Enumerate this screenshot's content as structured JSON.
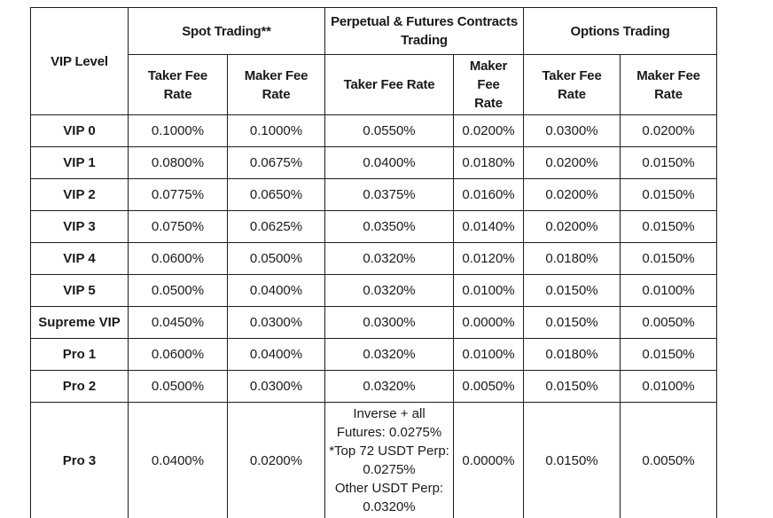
{
  "colors": {
    "background": "#ffffff",
    "border": "#1d1d1d",
    "text": "#1a1a1a"
  },
  "table": {
    "corner_header": "VIP Level",
    "groups": [
      {
        "label": "Spot Trading**",
        "columns": [
          "Taker Fee\nRate",
          "Maker Fee\nRate"
        ]
      },
      {
        "label": "Perpetual & Futures Contracts\nTrading",
        "columns": [
          "Taker Fee Rate",
          "Maker Fee\nRate"
        ]
      },
      {
        "label": "Options Trading",
        "columns": [
          "Taker Fee\nRate",
          "Maker Fee\nRate"
        ]
      }
    ],
    "rows": [
      {
        "level": "VIP 0",
        "values": [
          "0.1000%",
          "0.1000%",
          "0.0550%",
          "0.0200%",
          "0.0300%",
          "0.0200%"
        ]
      },
      {
        "level": "VIP 1",
        "values": [
          "0.0800%",
          "0.0675%",
          "0.0400%",
          "0.0180%",
          "0.0200%",
          "0.0150%"
        ]
      },
      {
        "level": "VIP 2",
        "values": [
          "0.0775%",
          "0.0650%",
          "0.0375%",
          "0.0160%",
          "0.0200%",
          "0.0150%"
        ]
      },
      {
        "level": "VIP 3",
        "values": [
          "0.0750%",
          "0.0625%",
          "0.0350%",
          "0.0140%",
          "0.0200%",
          "0.0150%"
        ]
      },
      {
        "level": "VIP 4",
        "values": [
          "0.0600%",
          "0.0500%",
          "0.0320%",
          "0.0120%",
          "0.0180%",
          "0.0150%"
        ]
      },
      {
        "level": "VIP 5",
        "values": [
          "0.0500%",
          "0.0400%",
          "0.0320%",
          "0.0100%",
          "0.0150%",
          "0.0100%"
        ]
      },
      {
        "level": "Supreme VIP",
        "values": [
          "0.0450%",
          "0.0300%",
          "0.0300%",
          "0.0000%",
          "0.0150%",
          "0.0050%"
        ]
      },
      {
        "level": "Pro 1",
        "values": [
          "0.0600%",
          "0.0400%",
          "0.0320%",
          "0.0100%",
          "0.0180%",
          "0.0150%"
        ]
      },
      {
        "level": "Pro 2",
        "values": [
          "0.0500%",
          "0.0300%",
          "0.0320%",
          "0.0050%",
          "0.0150%",
          "0.0100%"
        ]
      },
      {
        "level": "Pro 3",
        "values": [
          "0.0400%",
          "0.0200%",
          "Inverse + all\nFutures: 0.0275%\n*Top 72 USDT Perp:\n0.0275%\nOther USDT Perp:\n0.0320%",
          "0.0000%",
          "0.0150%",
          "0.0050%"
        ]
      }
    ]
  }
}
